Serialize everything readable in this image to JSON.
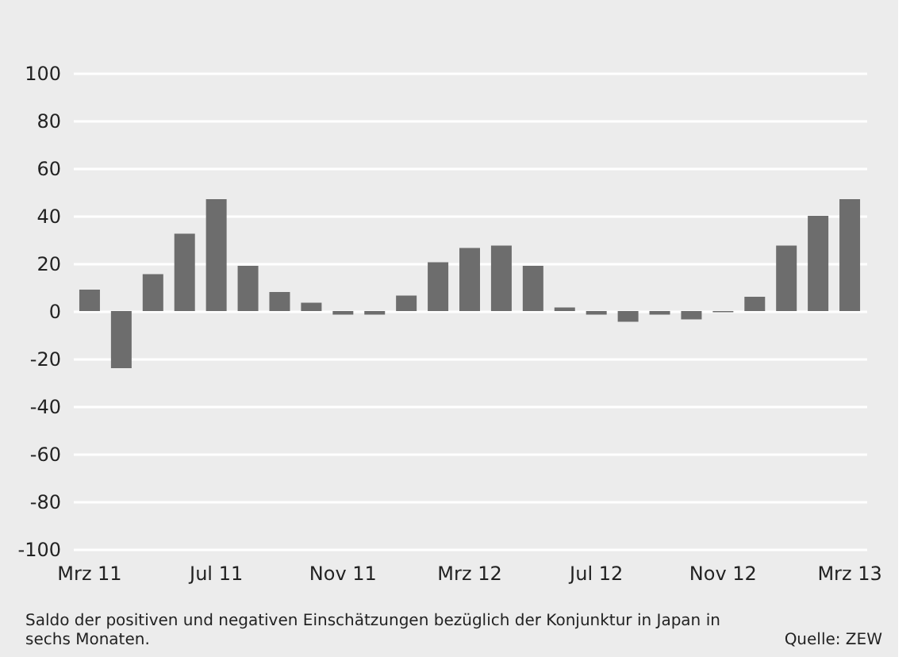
{
  "chart_data": {
    "type": "bar",
    "categories": [
      "Mrz 11",
      null,
      null,
      null,
      "Jul 11",
      null,
      null,
      null,
      "Nov 11",
      null,
      null,
      null,
      "Mrz 12",
      null,
      null,
      null,
      "Jul 12",
      null,
      null,
      null,
      "Nov 12",
      null,
      null,
      null,
      "Mrz 13"
    ],
    "values": [
      9,
      -24,
      15.5,
      32.5,
      47,
      19,
      8,
      3.5,
      -1.5,
      -1.5,
      6.5,
      20.5,
      26.5,
      27.5,
      19,
      1.5,
      -1.5,
      -4.5,
      -1.5,
      -3.5,
      -0.5,
      6,
      27.5,
      40,
      47
    ],
    "color": "#6d6d6d",
    "ylim": [
      -100,
      100
    ],
    "yticks": [
      -100,
      -80,
      -60,
      -40,
      -20,
      0,
      20,
      40,
      60,
      80,
      100
    ],
    "grid": "y",
    "annotations": [
      "Saldo der positiven und negativen Einschätzungen bezüglich der Konjunktur in Japan in sechs Monaten.",
      "Quelle: ZEW"
    ]
  }
}
